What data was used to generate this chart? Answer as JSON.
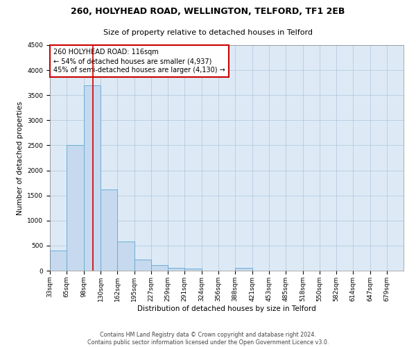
{
  "title": "260, HOLYHEAD ROAD, WELLINGTON, TELFORD, TF1 2EB",
  "subtitle": "Size of property relative to detached houses in Telford",
  "xlabel": "Distribution of detached houses by size in Telford",
  "ylabel": "Number of detached properties",
  "footer_line1": "Contains HM Land Registry data © Crown copyright and database right 2024.",
  "footer_line2": "Contains public sector information licensed under the Open Government Licence v3.0.",
  "bin_labels": [
    "33sqm",
    "65sqm",
    "98sqm",
    "130sqm",
    "162sqm",
    "195sqm",
    "227sqm",
    "259sqm",
    "291sqm",
    "324sqm",
    "356sqm",
    "388sqm",
    "421sqm",
    "453sqm",
    "485sqm",
    "518sqm",
    "550sqm",
    "582sqm",
    "614sqm",
    "647sqm",
    "679sqm"
  ],
  "bin_edges": [
    33,
    65,
    98,
    130,
    162,
    195,
    227,
    259,
    291,
    324,
    356,
    388,
    421,
    453,
    485,
    518,
    550,
    582,
    614,
    647,
    679,
    711
  ],
  "bar_values": [
    400,
    2500,
    3700,
    1620,
    580,
    215,
    105,
    60,
    40,
    0,
    0,
    55,
    0,
    0,
    0,
    0,
    0,
    0,
    0,
    0,
    0
  ],
  "bar_color": "#c6d9ee",
  "bar_edge_color": "#6aaed6",
  "grid_color": "#b0c4d8",
  "bg_color": "#ddeaf6",
  "property_line_x": 116,
  "property_line_color": "#cc0000",
  "annotation_text": "260 HOLYHEAD ROAD: 116sqm\n← 54% of detached houses are smaller (4,937)\n45% of semi-detached houses are larger (4,130) →",
  "annotation_box_color": "#cc0000",
  "ylim": [
    0,
    4500
  ],
  "title_fontsize": 9,
  "subtitle_fontsize": 8,
  "axis_label_fontsize": 7.5,
  "tick_fontsize": 6.5,
  "annotation_fontsize": 7,
  "footer_fontsize": 5.8
}
